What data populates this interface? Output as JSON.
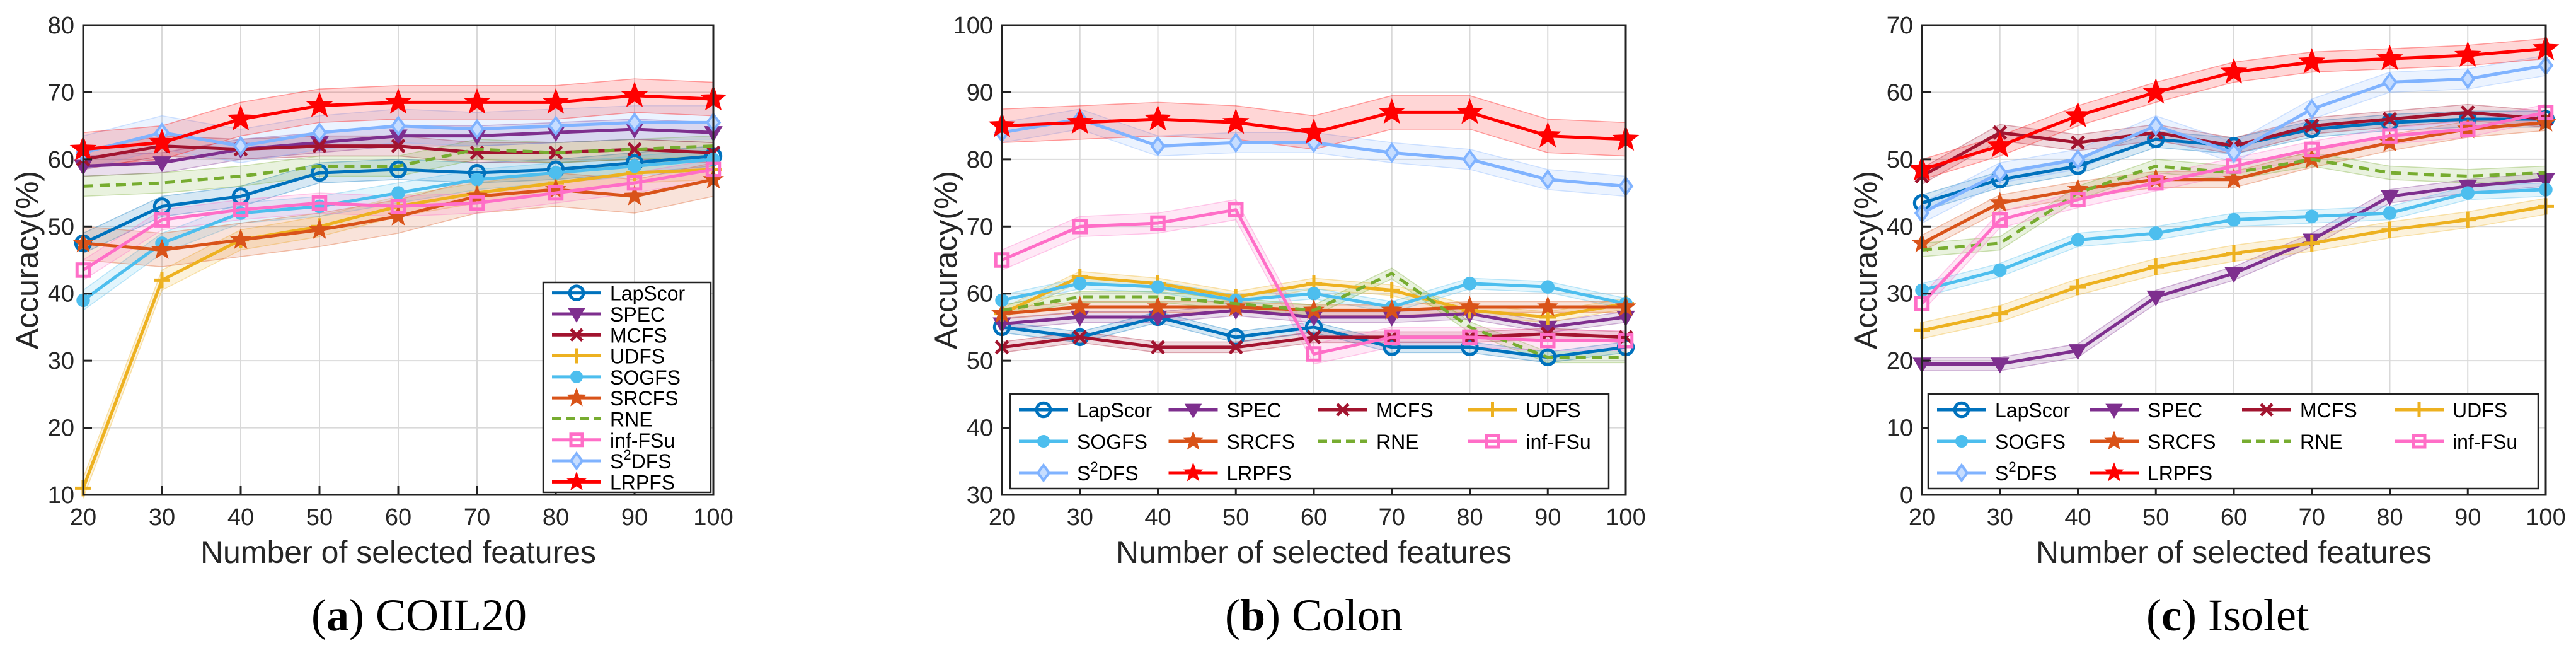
{
  "figure": {
    "captions": [
      {
        "letter": "a",
        "name": "COIL20"
      },
      {
        "letter": "b",
        "name": "Colon"
      },
      {
        "letter": "c",
        "name": "Isolet"
      }
    ],
    "method_styles": {
      "LapScor": {
        "color": "#0072BD",
        "marker": "circle",
        "dash": false
      },
      "SPEC": {
        "color": "#7E2F8E",
        "marker": "triangle-down",
        "dash": false
      },
      "MCFS": {
        "color": "#A2142F",
        "marker": "x",
        "dash": false
      },
      "UDFS": {
        "color": "#EDB120",
        "marker": "plus",
        "dash": false
      },
      "SOGFS": {
        "color": "#4DBEEE",
        "marker": "dot",
        "dash": false
      },
      "SRCFS": {
        "color": "#D95319",
        "marker": "star",
        "dash": false
      },
      "RNE": {
        "color": "#77AC30",
        "marker": "none",
        "dash": true
      },
      "inf-FSu": {
        "color": "#FF6EC7",
        "marker": "square",
        "dash": false
      },
      "S2DFS": {
        "color": "#80B3FF",
        "marker": "diamond",
        "dash": false
      },
      "LRPFS": {
        "color": "#FF0000",
        "marker": "hexagram",
        "dash": false
      }
    }
  },
  "chart_data": [
    {
      "type": "line",
      "title": "COIL20",
      "xlabel": "Number of selected features",
      "ylabel": "Accuracy(%)",
      "x": [
        20,
        30,
        40,
        50,
        60,
        70,
        80,
        90,
        100
      ],
      "xlim": [
        20,
        100
      ],
      "ylim": [
        10,
        80
      ],
      "yticks": [
        10,
        20,
        30,
        40,
        50,
        60,
        70,
        80
      ],
      "grid": true,
      "legend_position": "right-bottom-inside",
      "legend_columns": 1,
      "series": [
        {
          "name": "LapScor",
          "values": [
            47.5,
            53,
            54.5,
            58,
            58.5,
            58,
            58.5,
            59.5,
            60.5
          ],
          "band": 1.5
        },
        {
          "name": "SPEC",
          "values": [
            59,
            59.5,
            61.5,
            62.5,
            63.5,
            63.5,
            64,
            64.5,
            64
          ],
          "band": 1.5
        },
        {
          "name": "MCFS",
          "values": [
            60,
            62,
            61.5,
            62,
            62,
            61,
            61,
            61.5,
            61
          ],
          "band": 1.5
        },
        {
          "name": "UDFS",
          "values": [
            11,
            42,
            48,
            50,
            53,
            55,
            56.5,
            58,
            58.5
          ],
          "band": 1.5
        },
        {
          "name": "SOGFS",
          "values": [
            39,
            47.5,
            52,
            53,
            55,
            57,
            58,
            59,
            60
          ],
          "band": 1.5
        },
        {
          "name": "SRCFS",
          "values": [
            47.5,
            46.5,
            48,
            49.5,
            51.5,
            54.5,
            55.5,
            54.5,
            57
          ],
          "band": 2.5
        },
        {
          "name": "RNE",
          "values": [
            56,
            56.5,
            57.5,
            59,
            59,
            61.5,
            61,
            61.5,
            62
          ],
          "band": 1.5
        },
        {
          "name": "inf-FSu",
          "values": [
            43.5,
            51,
            52.5,
            53.5,
            53,
            53.5,
            55,
            56.5,
            58.5
          ],
          "band": 1.5
        },
        {
          "name": "S2DFS",
          "values": [
            61,
            64,
            62,
            64,
            65,
            64.5,
            65,
            65.5,
            65.5
          ],
          "band": 2.5
        },
        {
          "name": "LRPFS",
          "values": [
            61.5,
            62.5,
            66,
            68,
            68.5,
            68.5,
            68.5,
            69.5,
            69
          ],
          "band": 2.5
        }
      ]
    },
    {
      "type": "line",
      "title": "Colon",
      "xlabel": "Number of selected features",
      "ylabel": "Accuracy(%)",
      "x": [
        20,
        30,
        40,
        50,
        60,
        70,
        80,
        90,
        100
      ],
      "xlim": [
        20,
        100
      ],
      "ylim": [
        30,
        100
      ],
      "yticks": [
        30,
        40,
        50,
        60,
        70,
        80,
        90,
        100
      ],
      "grid": true,
      "legend_position": "bottom-inside",
      "legend_columns": 4,
      "series": [
        {
          "name": "LapScor",
          "values": [
            55,
            53.5,
            56.5,
            53.5,
            55,
            52,
            52,
            50.5,
            52
          ],
          "band": 0.8
        },
        {
          "name": "SPEC",
          "values": [
            55.5,
            56.5,
            56.5,
            57.5,
            56.5,
            56.5,
            57,
            55,
            56.5
          ],
          "band": 0.8
        },
        {
          "name": "MCFS",
          "values": [
            52,
            53.5,
            52,
            52,
            53.5,
            53.5,
            53.5,
            54,
            53.5
          ],
          "band": 0.8
        },
        {
          "name": "UDFS",
          "values": [
            57,
            62.5,
            61.5,
            59.5,
            61.5,
            60.5,
            57.5,
            56.5,
            58.5
          ],
          "band": 0.8
        },
        {
          "name": "SOGFS",
          "values": [
            59,
            61.5,
            61,
            59,
            60,
            58,
            61.5,
            61,
            58.5
          ],
          "band": 0.8
        },
        {
          "name": "SRCFS",
          "values": [
            57,
            58,
            58,
            58,
            57.5,
            57.5,
            58,
            58,
            58
          ],
          "band": 0.8
        },
        {
          "name": "RNE",
          "values": [
            57.5,
            59.5,
            59.5,
            58.5,
            57.5,
            63,
            55,
            50.5,
            50.5
          ],
          "band": 0.8
        },
        {
          "name": "inf-FSu",
          "values": [
            65,
            70,
            70.5,
            72.5,
            51,
            53.5,
            53.5,
            53,
            53
          ],
          "band": 1.5
        },
        {
          "name": "S2DFS",
          "values": [
            84,
            86,
            82,
            82.5,
            82.5,
            81,
            80,
            77,
            76
          ],
          "band": 1.5
        },
        {
          "name": "LRPFS",
          "values": [
            85,
            85.5,
            86,
            85.5,
            84,
            87,
            87,
            83.5,
            83
          ],
          "band": 2.5
        }
      ]
    },
    {
      "type": "line",
      "title": "Isolet",
      "xlabel": "Number of selected features",
      "ylabel": "Accuracy(%)",
      "x": [
        20,
        30,
        40,
        50,
        60,
        70,
        80,
        90,
        100
      ],
      "xlim": [
        20,
        100
      ],
      "ylim": [
        0,
        70
      ],
      "yticks": [
        0,
        10,
        20,
        30,
        40,
        50,
        60,
        70
      ],
      "grid": true,
      "legend_position": "bottom-inside",
      "legend_columns": 4,
      "series": [
        {
          "name": "LapScor",
          "values": [
            43.5,
            47,
            49,
            53,
            52,
            54.5,
            55.5,
            56,
            56
          ],
          "band": 1.2
        },
        {
          "name": "SPEC",
          "values": [
            19.5,
            19.5,
            21.5,
            29.5,
            33,
            38,
            44.5,
            46,
            47
          ],
          "band": 1.0
        },
        {
          "name": "MCFS",
          "values": [
            47.5,
            54,
            52.5,
            54,
            52,
            55,
            56,
            57,
            56
          ],
          "band": 1.2
        },
        {
          "name": "UDFS",
          "values": [
            24.5,
            27,
            31,
            34,
            36,
            37.5,
            39.5,
            41,
            43
          ],
          "band": 1.2
        },
        {
          "name": "SOGFS",
          "values": [
            30.5,
            33.5,
            38,
            39,
            41,
            41.5,
            42,
            45,
            45.5
          ],
          "band": 1.0
        },
        {
          "name": "SRCFS",
          "values": [
            37.5,
            43.5,
            45.5,
            47,
            47,
            50,
            52.5,
            54.5,
            55.5
          ],
          "band": 1.2
        },
        {
          "name": "RNE",
          "values": [
            36.5,
            37.5,
            45,
            49,
            48,
            50,
            48,
            47.5,
            48
          ],
          "band": 1.0
        },
        {
          "name": "inf-FSu",
          "values": [
            28.5,
            41,
            44,
            46.5,
            49,
            51.5,
            53.5,
            54.5,
            57
          ],
          "band": 1.2
        },
        {
          "name": "S2DFS",
          "values": [
            42,
            48,
            50,
            55,
            51,
            57.5,
            61.5,
            62,
            64
          ],
          "band": 1.5
        },
        {
          "name": "LRPFS",
          "values": [
            48.5,
            52,
            56.5,
            60,
            63,
            64.5,
            65,
            65.5,
            66.5
          ],
          "band": 1.5
        }
      ]
    }
  ]
}
